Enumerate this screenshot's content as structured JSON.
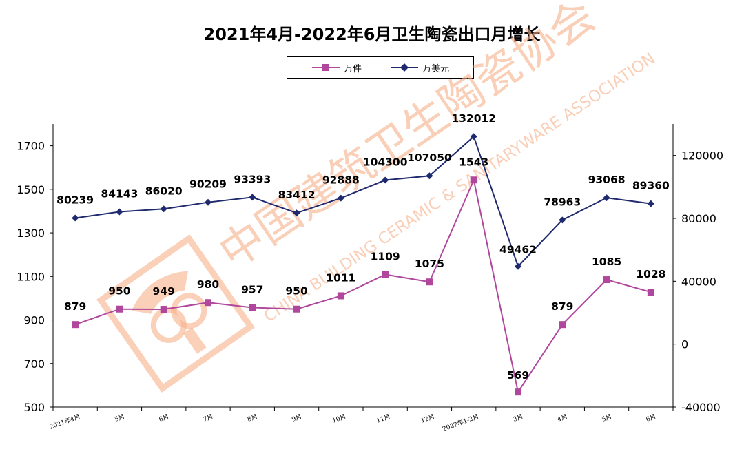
{
  "title": "2021年4月-2022年6月卫生陶瓷出口月增长",
  "watermark": {
    "cn": "中国建筑卫生陶瓷协会",
    "en": "CHINA BUILDING CERAMIC & SANITARYWARE ASSOCIATION",
    "logo": "association-seal"
  },
  "colors": {
    "series1": "#b0479c",
    "series2": "#1f2a6e",
    "axis": "#000000",
    "watermark": "#f6b08a"
  },
  "chart_data": {
    "type": "line",
    "categories": [
      "2021年4月",
      "5月",
      "6月",
      "7月",
      "8月",
      "9月",
      "10月",
      "11月",
      "12月",
      "2022年1-2月",
      "3月",
      "4月",
      "5月",
      "6月"
    ],
    "series": [
      {
        "name": "万件",
        "axis": "left",
        "marker": "square",
        "values": [
          879,
          950,
          949,
          980,
          957,
          950,
          1011,
          1109,
          1075,
          1543,
          569,
          879,
          1085,
          1028
        ],
        "labels": [
          "879",
          "950",
          "949",
          "980",
          "957",
          "950",
          "1011",
          "1109",
          "1075",
          "1543",
          "569",
          "879",
          "1085",
          "1028"
        ]
      },
      {
        "name": "万美元",
        "axis": "right",
        "marker": "diamond",
        "values": [
          80239,
          84143,
          86020,
          90209,
          93393,
          83412,
          92888,
          104300,
          107050,
          132012,
          49462,
          78963,
          93068,
          89360
        ],
        "labels": [
          "80239",
          "84143",
          "86020",
          "90209",
          "93393",
          "83412",
          "92888",
          "104300",
          "107050",
          "132012",
          "49462",
          "78963",
          "93068",
          "89360"
        ]
      }
    ],
    "y_left": {
      "ylim": [
        500,
        1800
      ],
      "ticks": [
        "500",
        "700",
        "900",
        "1100",
        "1300",
        "1500",
        "1700"
      ],
      "tick_values": [
        500,
        700,
        900,
        1100,
        1300,
        1500,
        1700
      ]
    },
    "y_right": {
      "ylim": [
        -40000,
        140000
      ],
      "ticks": [
        "-40000",
        "0",
        "40000",
        "80000",
        "120000"
      ],
      "tick_values": [
        -40000,
        0,
        40000,
        80000,
        120000
      ]
    },
    "grid": false,
    "legend": "top-center"
  }
}
